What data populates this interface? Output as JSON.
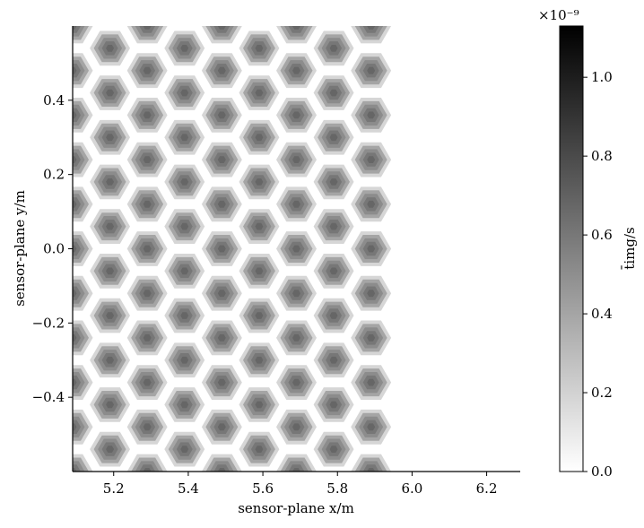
{
  "chart_data": {
    "type": "heatmap",
    "xlabel": "sensor-plane x/m",
    "ylabel": "sensor-plane y/m",
    "xlim": [
      5.09,
      6.29
    ],
    "ylim": [
      -0.6,
      0.6
    ],
    "x_ticks": [
      5.2,
      5.4,
      5.6,
      5.8,
      6.0,
      6.2
    ],
    "x_tick_labels": [
      "5.2",
      "5.4",
      "5.6",
      "5.8",
      "6.0",
      "6.2"
    ],
    "y_ticks": [
      -0.4,
      -0.2,
      0.0,
      0.2,
      0.4
    ],
    "y_tick_labels": [
      "−0.4",
      "−0.2",
      "0.0",
      "0.2",
      "0.4"
    ],
    "colorbar": {
      "label": "t̄img/s",
      "exponent_label": "×10⁻⁹",
      "range": [
        0.0,
        1.13e-09
      ],
      "cmap": "gray_r",
      "ticks": [
        0.0,
        0.2,
        0.4,
        0.6,
        0.8,
        1.0
      ],
      "tick_labels": [
        "0.0",
        "0.2",
        "0.4",
        "0.6",
        "0.8",
        "1.0"
      ]
    },
    "hexagon_lattice": {
      "description_free": true,
      "hex_radius": 0.054,
      "col_spacing": 0.1,
      "row_spacing": 0.12,
      "x_centers": [
        5.09,
        5.19,
        5.29,
        5.39,
        5.49,
        5.59,
        5.69,
        5.79,
        5.89
      ],
      "column_y_offsets": [
        0,
        0.06
      ],
      "data_x_max": 5.96,
      "center_value": 6.8e-10,
      "edge_value": 1.8e-10
    }
  },
  "colors": {
    "axis": "#000000",
    "background": "#ffffff"
  }
}
